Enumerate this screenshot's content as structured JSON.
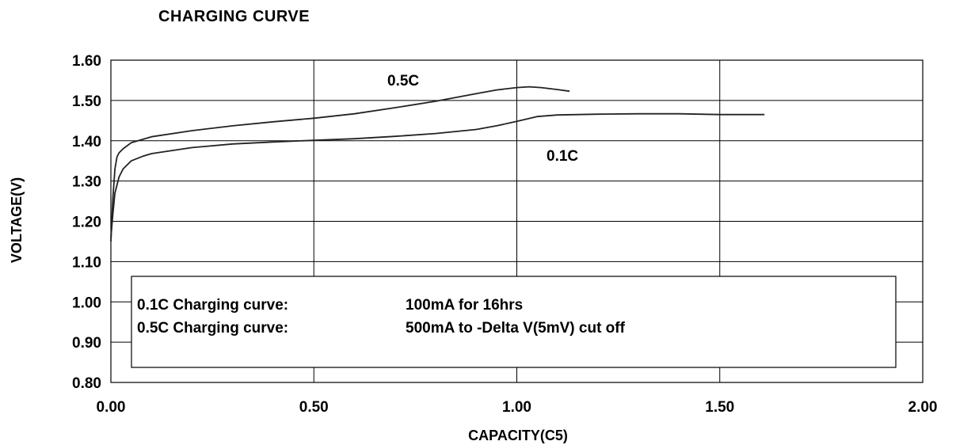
{
  "chart_data": {
    "type": "line",
    "title": "CHARGING CURVE",
    "xlabel": "CAPACITY(C5)",
    "ylabel": "VOLTAGE(V)",
    "xlim": [
      0,
      2
    ],
    "ylim": [
      0.8,
      1.6
    ],
    "x_ticks": [
      "0.00",
      "0.50",
      "1.00",
      "1.50",
      "2.00"
    ],
    "y_ticks": [
      "0.80",
      "0.90",
      "1.00",
      "1.10",
      "1.20",
      "1.30",
      "1.40",
      "1.50",
      "1.60"
    ],
    "grid": true,
    "series": [
      {
        "name": "0.5C",
        "x": [
          0,
          0.005,
          0.01,
          0.015,
          0.02,
          0.03,
          0.05,
          0.1,
          0.2,
          0.3,
          0.4,
          0.5,
          0.6,
          0.7,
          0.8,
          0.9,
          0.95,
          1.0,
          1.03,
          1.06,
          1.1,
          1.13
        ],
        "y": [
          1.15,
          1.26,
          1.33,
          1.36,
          1.37,
          1.38,
          1.395,
          1.41,
          1.425,
          1.437,
          1.447,
          1.456,
          1.467,
          1.482,
          1.498,
          1.517,
          1.526,
          1.532,
          1.534,
          1.532,
          1.527,
          1.523
        ]
      },
      {
        "name": "0.1C",
        "x": [
          0,
          0.005,
          0.01,
          0.02,
          0.03,
          0.05,
          0.08,
          0.1,
          0.2,
          0.3,
          0.4,
          0.5,
          0.6,
          0.7,
          0.8,
          0.9,
          0.95,
          1.0,
          1.05,
          1.1,
          1.2,
          1.3,
          1.4,
          1.5,
          1.61
        ],
        "y": [
          1.16,
          1.22,
          1.27,
          1.31,
          1.33,
          1.35,
          1.362,
          1.368,
          1.383,
          1.392,
          1.397,
          1.401,
          1.405,
          1.411,
          1.418,
          1.428,
          1.437,
          1.448,
          1.46,
          1.464,
          1.466,
          1.467,
          1.467,
          1.465,
          1.465
        ]
      }
    ],
    "annotations": [
      {
        "label": "0.1C Charging curve:",
        "text": "100mA for 16hrs"
      },
      {
        "label": "0.5C Charging curve:",
        "text": "500mA to -Delta V(5mV) cut off"
      }
    ]
  }
}
